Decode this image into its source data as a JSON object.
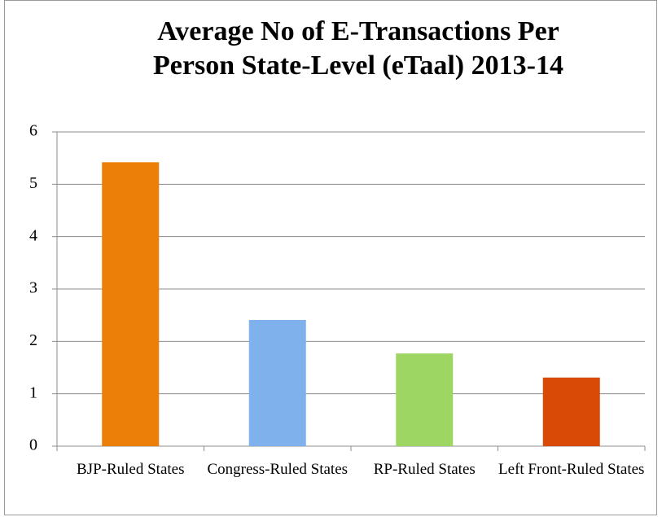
{
  "chart_data": {
    "type": "bar",
    "title": "Average No of E-Transactions Per Person State-Level (eTaal) 2013-14",
    "categories": [
      "BJP-Ruled States",
      "Congress-Ruled States",
      "RP-Ruled States",
      "Left Front-Ruled States"
    ],
    "values": [
      5.42,
      2.41,
      1.77,
      1.31
    ],
    "colors": [
      "#ec7f07",
      "#7fb2ec",
      "#9ed663",
      "#d94a07"
    ],
    "ylim": [
      0,
      6
    ],
    "yticks": [
      0,
      1,
      2,
      3,
      4,
      5,
      6
    ],
    "grid": true
  }
}
